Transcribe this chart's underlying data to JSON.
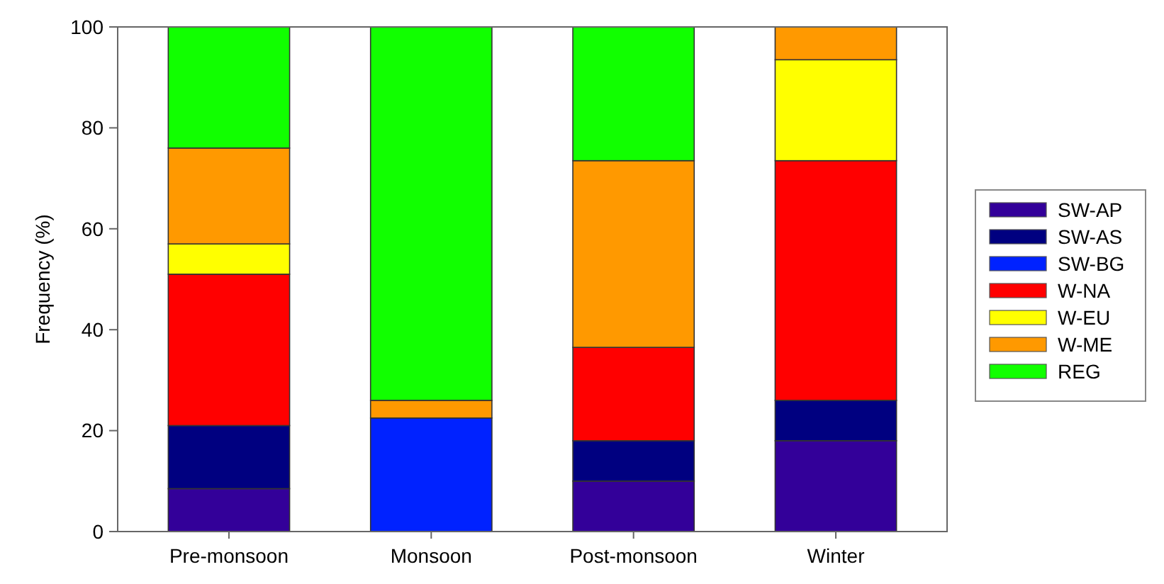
{
  "chart_data": {
    "type": "bar",
    "stacked": true,
    "ylabel": "Frequency (%)",
    "categories": [
      "Pre-monsoon",
      "Monsoon",
      "Post-monsoon",
      "Winter"
    ],
    "series": [
      {
        "name": "SW-AP",
        "color": "#330099",
        "values": [
          8.5,
          0,
          10,
          18
        ]
      },
      {
        "name": "SW-AS",
        "color": "#000080",
        "values": [
          12.5,
          0,
          8,
          8
        ]
      },
      {
        "name": "SW-BG",
        "color": "#0022ff",
        "values": [
          0,
          22.5,
          0,
          0
        ]
      },
      {
        "name": "W-NA",
        "color": "#ff0000",
        "values": [
          30,
          0,
          18.5,
          47.5
        ]
      },
      {
        "name": "W-EU",
        "color": "#ffff00",
        "values": [
          6,
          0,
          0,
          20
        ]
      },
      {
        "name": "W-ME",
        "color": "#ff9900",
        "values": [
          19,
          3.5,
          37,
          6.5
        ]
      },
      {
        "name": "REG",
        "color": "#11ff00",
        "values": [
          24,
          74,
          26.5,
          0
        ]
      }
    ],
    "ylim": [
      0,
      100
    ],
    "yticks": [
      0,
      20,
      40,
      60,
      80,
      100
    ],
    "legend": "right",
    "grid": false
  }
}
